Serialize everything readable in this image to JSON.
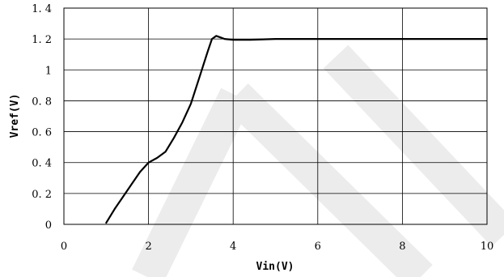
{
  "chart_data": {
    "type": "line",
    "title": "",
    "xlabel": "Vin(V)",
    "ylabel": "Vref(V)",
    "xlim": [
      0,
      10
    ],
    "ylim": [
      0,
      1.4
    ],
    "x_ticks": [
      0,
      2,
      4,
      6,
      8,
      10
    ],
    "x_tick_labels": [
      "0",
      "2",
      "4",
      "6",
      "8",
      "10"
    ],
    "y_ticks": [
      0,
      0.2,
      0.4,
      0.6,
      0.8,
      1,
      1.2,
      1.4
    ],
    "y_tick_labels": [
      "0",
      "0. 2",
      "0. 4",
      "0. 6",
      "0. 8",
      "1",
      "1. 2",
      "1. 4"
    ],
    "grid": true,
    "legend": "none",
    "series": [
      {
        "color": "#000000",
        "x": [
          1.0,
          1.2,
          1.4,
          1.6,
          1.8,
          2.0,
          2.2,
          2.4,
          2.6,
          2.8,
          3.0,
          3.2,
          3.4,
          3.5,
          3.6,
          3.7,
          3.8,
          4.0,
          4.4,
          5.0,
          6.0,
          7.0,
          8.0,
          9.0,
          10.0
        ],
        "y": [
          0.01,
          0.1,
          0.18,
          0.26,
          0.34,
          0.4,
          0.43,
          0.47,
          0.56,
          0.66,
          0.78,
          0.95,
          1.12,
          1.2,
          1.22,
          1.21,
          1.2,
          1.195,
          1.195,
          1.2,
          1.2,
          1.2,
          1.2,
          1.2,
          1.2
        ]
      }
    ]
  },
  "watermark_color": "#ececec"
}
